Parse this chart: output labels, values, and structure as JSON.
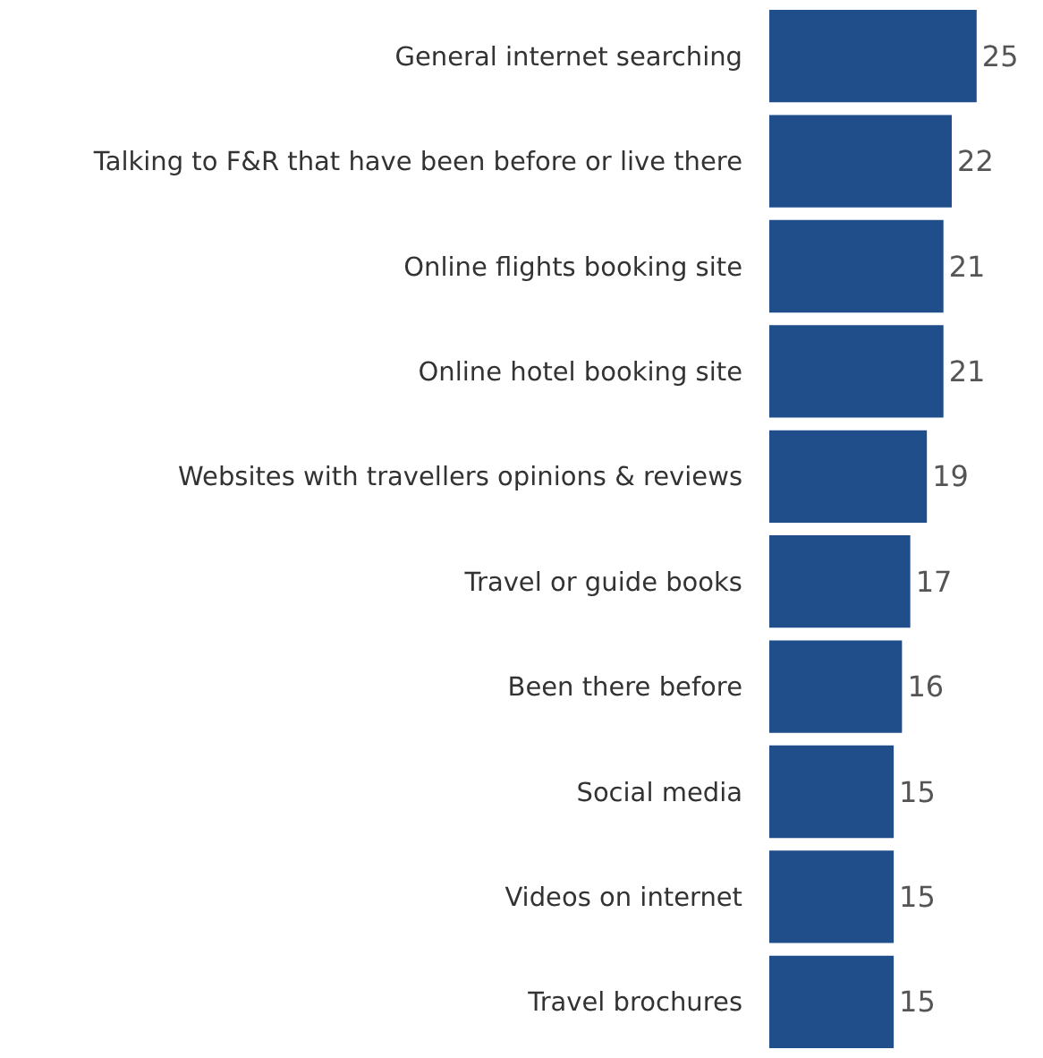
{
  "chart_data": {
    "type": "bar",
    "orientation": "horizontal",
    "categories": [
      "General internet searching",
      "Talking to F&R that have been before or live there",
      "Online flights booking site",
      "Online hotel booking site",
      "Websites with travellers opinions & reviews",
      "Travel or guide books",
      "Been there before",
      "Social media",
      "Videos on internet",
      "Travel brochures"
    ],
    "values": [
      25,
      22,
      21,
      21,
      19,
      17,
      16,
      15,
      15,
      15
    ],
    "color": "#1f4e8b",
    "xlim": [
      0,
      33
    ],
    "data_labels": true,
    "grid": false,
    "legend": false
  }
}
